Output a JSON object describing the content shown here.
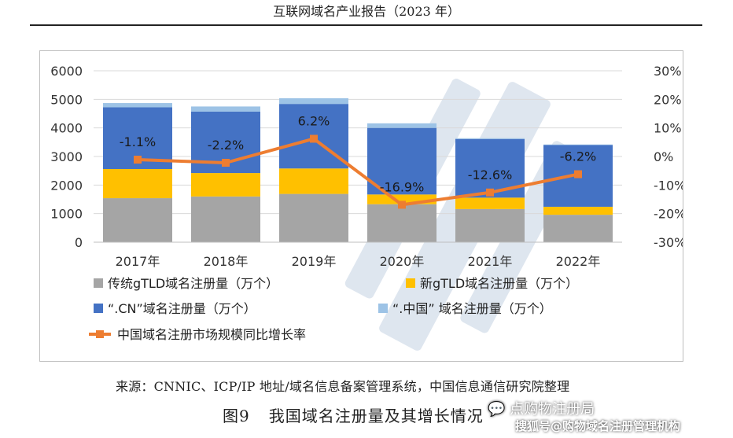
{
  "document": {
    "header": "互联网域名产业报告（2023 年）",
    "source": "来源：CNNIC、ICP/IP 地址/域名信息备案管理系统，中国信息通信研究院整理",
    "figure_number": "图9",
    "figure_caption": "我国域名注册量及其增长情况",
    "watermark_account": "点购物注册局",
    "watermark_site": "搜狐号@购物域名注册管理机构",
    "watermark_logo_icon": "wechat-bubbles-icon"
  },
  "chart_data": {
    "type": "bar",
    "stacked": true,
    "categories": [
      "2017年",
      "2018年",
      "2019年",
      "2020年",
      "2021年",
      "2022年"
    ],
    "y_left": {
      "lim": [
        0,
        6000
      ],
      "ticks": [
        "0",
        "1000",
        "2000",
        "3000",
        "4000",
        "5000",
        "6000"
      ]
    },
    "y_right": {
      "lim": [
        -30,
        30
      ],
      "ticks": [
        "-30%",
        "-20%",
        "-10%",
        "0%",
        "10%",
        "20%",
        "30%"
      ]
    },
    "series": [
      {
        "name": "传统gTLD域名注册量（万个）",
        "kind": "bar",
        "color": "#a5a5a5",
        "values": [
          1540,
          1600,
          1690,
          1330,
          1160,
          960
        ]
      },
      {
        "name": "新gTLD域名注册量（万个）",
        "kind": "bar",
        "color": "#ffc000",
        "values": [
          1020,
          820,
          890,
          340,
          400,
          280
        ]
      },
      {
        "name": "“.CN”域名注册量（万个）",
        "kind": "bar",
        "color": "#4472c4",
        "values": [
          2160,
          2150,
          2260,
          2330,
          2050,
          2160
        ]
      },
      {
        "name": "“.中国” 域名注册量（万个）",
        "kind": "bar",
        "color": "#9dc3e6",
        "values": [
          150,
          180,
          200,
          160,
          30,
          20
        ]
      },
      {
        "name": "中国域名注册市场规模同比增长率",
        "kind": "line",
        "axis": "right",
        "color": "#ed7d31",
        "values": [
          -1.1,
          -2.2,
          6.2,
          -16.9,
          -12.6,
          -6.2
        ],
        "labels": [
          "-1.1%",
          "-2.2%",
          "6.2%",
          "-16.9%",
          "-12.6%",
          "-6.2%"
        ]
      }
    ],
    "grid": true,
    "legend_position": "bottom"
  }
}
